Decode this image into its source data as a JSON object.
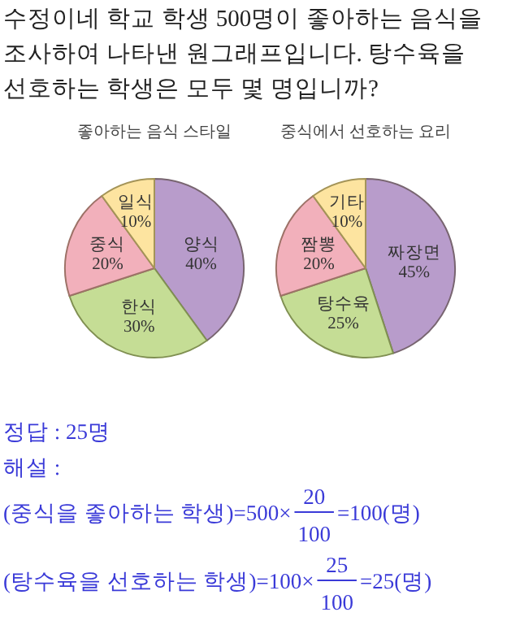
{
  "chart_data": [
    {
      "type": "other",
      "annotations": [
        "수정이네 학교 학생 500명이 좋아하는 음식을 조사하여 나타낸 원그래프입니다. 탕수육을 선호하는 학생은 모두 몇 명입니까?"
      ]
    },
    {
      "type": "pie",
      "title": "좋아하는 음식 스타일",
      "categories": [
        "양식",
        "한식",
        "중식",
        "일식"
      ],
      "values": [
        40,
        30,
        20,
        10
      ],
      "colors": [
        "#b89ccb",
        "#c5dd95",
        "#f2b0bb",
        "#fde4a0"
      ],
      "value_labels": [
        "40%",
        "30%",
        "20%",
        "10%"
      ]
    },
    {
      "type": "pie",
      "title": "중식에서 선호하는 요리",
      "categories": [
        "짜장면",
        "탕수육",
        "짬뽕",
        "기타"
      ],
      "values": [
        45,
        25,
        20,
        10
      ],
      "colors": [
        "#b89ccb",
        "#c5dd95",
        "#f2b0bb",
        "#fde4a0"
      ],
      "value_labels": [
        "45%",
        "25%",
        "20%",
        "10%"
      ]
    },
    {
      "type": "other",
      "annotations": [
        "정답 : 25명",
        "해설 :",
        "(중식을 좋아하는 학생)=500×",
        "20",
        "100",
        "=100(명)",
        "(탕수육을 선호하는 학생)=100×",
        "25",
        "100",
        "=25(명)"
      ]
    }
  ]
}
